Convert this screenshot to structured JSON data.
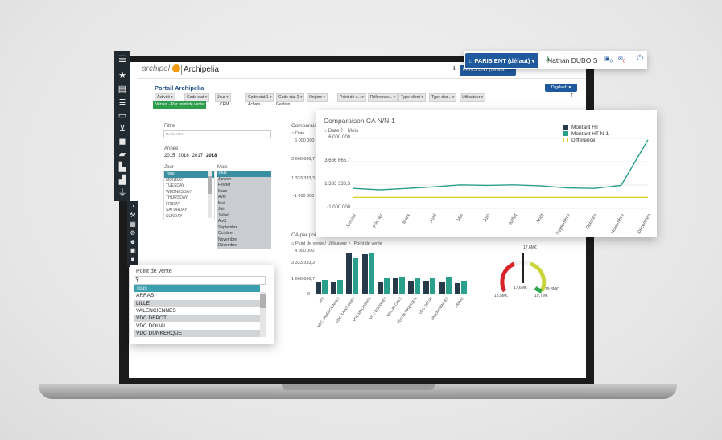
{
  "header": {
    "logo_text": "archipel",
    "app_name": "Archipelia",
    "mini_selector": "PARIS ENT (défaut)",
    "mini_user": "Nathan Dubois"
  },
  "callout": {
    "store_selector": "PARIS ENT (défaut)",
    "user_name": "Nathan DUBOIS",
    "calendar_count": "0",
    "mail_count": "0"
  },
  "portal": {
    "title": "Portail Archipelia",
    "digdash_label": "Digdash",
    "filters": [
      "Activité",
      "Code stat",
      "Jour",
      "Code stat 1",
      "Code stat 2",
      "Origine",
      "Point de v...",
      "Référence...",
      "Type client",
      "Type doc...",
      "Utilisateur"
    ],
    "subtabs": [
      "Ventes - Par point de vente",
      "CRM",
      "Achats",
      "Gestion"
    ]
  },
  "filter_panel": {
    "filtre_label": "Filtre",
    "filtre_placeholder": "Rechercher",
    "annee_label": "Année",
    "years": [
      "2015",
      "2016",
      "2017",
      "2018"
    ],
    "jour_label": "Jour",
    "jours": [
      "Tous",
      "MONDAY",
      "TUESDAY",
      "WEDNESDAY",
      "THURSDAY",
      "FRIDAY",
      "SATURDAY",
      "SUNDAY"
    ],
    "mois_label": "Mois",
    "mois": [
      "Tous",
      "Janvier",
      "Février",
      "Mars",
      "Avril",
      "Mai",
      "Juin",
      "Juillet",
      "Août",
      "Septembre",
      "Octobre",
      "Novembre",
      "Décembre"
    ]
  },
  "bg_chart1": {
    "title": "Comparaison",
    "breadcrumb": "Date",
    "yticks": [
      "6 000 000",
      "3 666 666,7",
      "1 333 333,3",
      "-1 000 000"
    ]
  },
  "bg_chart2": {
    "title": "CA par point",
    "breadcrumb_1": "Point de vente / Utilisateur",
    "breadcrumb_2": "Point de vente",
    "yticks": [
      "4 000 000",
      "3 333 333,3",
      "1 666 666,7",
      "0"
    ]
  },
  "gauge": {
    "max_label": "17,6M€",
    "center_label": "17,6M€",
    "left_label": "15,5M€",
    "right_label": "19,3M€",
    "lower_label": "19,7M€"
  },
  "popup": {
    "title": "Comparaison CA N/N-1",
    "breadcrumb_1": "Date",
    "breadcrumb_2": "Mois"
  },
  "point_de_vente": {
    "title": "Point de vente",
    "items": [
      "Tous",
      "ARRAS",
      "LILLE",
      "VALENCIENNES",
      "VDC DEPOT",
      "VDC DOUAI",
      "VDC DUNKERQUE"
    ]
  },
  "colors": {
    "montant_ht": "#263a49",
    "montant_ht_n1": "#2aa08c",
    "difference": "#e3d12a",
    "brand_blue": "#1f5a9e"
  },
  "chart_data": [
    {
      "type": "line",
      "title": "Comparaison CA N/N-1",
      "categories": [
        "Janvier",
        "Février",
        "Mars",
        "Avril",
        "Mai",
        "Juin",
        "Juillet",
        "Août",
        "Septembre",
        "Octobre",
        "Novembre",
        "Décembre"
      ],
      "yticks": [
        "6 000 000",
        "3 666 666,7",
        "1 333 333,3",
        "-1 000 000"
      ],
      "ylim": [
        -1000000,
        6000000
      ],
      "series": [
        {
          "name": "Montant HT",
          "values": [
            null,
            null,
            null,
            null,
            null,
            null,
            null,
            null,
            null,
            null,
            null,
            null
          ]
        },
        {
          "name": "Montant HT N-1",
          "values": [
            1000000,
            850000,
            1000000,
            1150000,
            1350000,
            1300000,
            1350000,
            1250000,
            1050000,
            1000000,
            1300000,
            5850000
          ]
        },
        {
          "name": "Difference",
          "values": [
            100000,
            100000,
            100000,
            100000,
            100000,
            100000,
            100000,
            100000,
            100000,
            100000,
            100000,
            100000
          ]
        }
      ],
      "legend": "top-right"
    },
    {
      "type": "bar",
      "title": "CA par point de vente",
      "categories": [
        "VFC",
        "VDC VALENCIENNES",
        "VDC SAINT OUEN",
        "VDC MULHOUSE",
        "VDC BONDUES",
        "VDC PACHES",
        "VDC DUNKERQUE",
        "VDC DOUAI",
        "VALENCIENNES",
        "ARRAS"
      ],
      "ylim": [
        0,
        4000000
      ],
      "series": [
        {
          "name": "Montant HT",
          "values": [
            1150000,
            1150000,
            3650000,
            3600000,
            1150000,
            1400000,
            1250000,
            1200000,
            1100000,
            1000000
          ]
        },
        {
          "name": "Montant HT N-1",
          "values": [
            1300000,
            1300000,
            3250000,
            3700000,
            1400000,
            1550000,
            1500000,
            1450000,
            1600000,
            1250000
          ]
        }
      ]
    }
  ]
}
